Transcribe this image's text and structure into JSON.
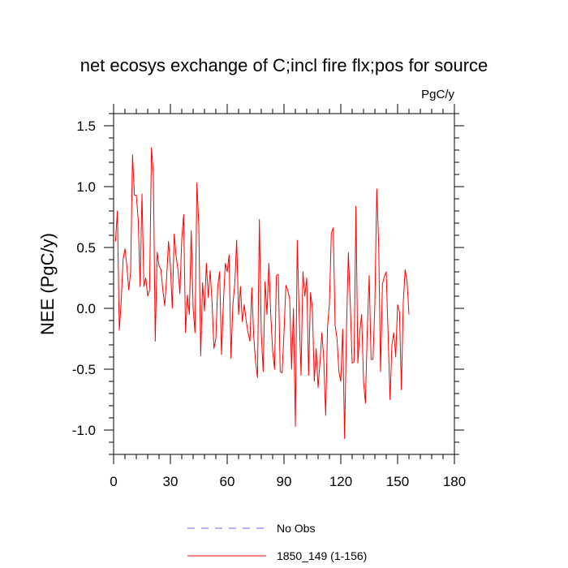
{
  "chart_data": {
    "type": "line",
    "title": "net ecosys exchange of C;incl fire flx;pos for source",
    "units_label": "PgC/y",
    "ylabel": "NEE  (PgC/y)",
    "xlabel": "",
    "xlim": [
      0,
      180
    ],
    "ylim": [
      -1.2,
      1.6
    ],
    "x_ticks": [
      0,
      30,
      60,
      90,
      120,
      150,
      180
    ],
    "x_tick_labels": [
      "0",
      "30",
      "60",
      "90",
      "120",
      "150",
      "180"
    ],
    "y_ticks": [
      -1.0,
      -0.5,
      0.0,
      0.5,
      1.0,
      1.5
    ],
    "y_tick_labels": [
      "-1.0",
      "-0.5",
      "0.0",
      "0.5",
      "1.0",
      "1.5"
    ],
    "grid": false,
    "legend_placement": "bottom",
    "series": [
      {
        "name": "No Obs",
        "color": "#6666ff",
        "dash": true,
        "values": []
      },
      {
        "name": "1850_149 (1-156)",
        "color": "#ff0000",
        "dash": false,
        "x_start": 1,
        "values": [
          0.55,
          0.8,
          -0.18,
          0.05,
          0.4,
          0.49,
          0.35,
          0.15,
          0.3,
          1.26,
          0.93,
          0.93,
          0.73,
          0.18,
          0.94,
          0.18,
          0.25,
          0.1,
          0.15,
          1.32,
          1.1,
          -0.27,
          0.46,
          0.35,
          0.32,
          0.15,
          0.02,
          0.25,
          0.55,
          0.35,
          0.0,
          0.61,
          0.43,
          0.32,
          0.12,
          0.57,
          0.77,
          -0.2,
          0.11,
          -0.05,
          0.64,
          0.0,
          -0.2,
          1.03,
          0.68,
          -0.39,
          0.21,
          -0.02,
          0.37,
          0.09,
          0.31,
          0.05,
          -0.33,
          -0.25,
          0.18,
          0.3,
          -0.38,
          0.05,
          0.37,
          0.3,
          0.44,
          -0.41,
          0.03,
          0.2,
          0.56,
          -0.05,
          0.18,
          -0.11,
          0.03,
          -0.1,
          -0.2,
          -0.27,
          0.17,
          -0.23,
          -0.44,
          -0.57,
          0.73,
          -0.2,
          -0.52,
          0.22,
          -0.05,
          0.37,
          -0.05,
          -0.35,
          -0.5,
          0.27,
          0.28,
          -0.52,
          -0.53,
          -0.2,
          0.19,
          0.15,
          0.08,
          -0.5,
          0.0,
          -0.97,
          0.56,
          -0.05,
          -0.55,
          0.3,
          0.1,
          0.25,
          -0.55,
          0.13,
          0.0,
          -0.6,
          -0.33,
          -0.65,
          -0.45,
          -0.2,
          -0.42,
          -0.88,
          -0.15,
          0.04,
          0.62,
          0.66,
          -0.14,
          -0.25,
          -0.52,
          -0.6,
          -0.17,
          -1.07,
          -0.18,
          0.46,
          0.04,
          -0.45,
          -0.44,
          0.84,
          -0.45,
          -0.2,
          -0.05,
          -0.6,
          -0.78,
          -0.17,
          0.27,
          -0.42,
          -0.42,
          0.04,
          0.98,
          0.53,
          -0.52,
          0.2,
          0.26,
          0.3,
          -0.22,
          -0.75,
          -0.3,
          -0.2,
          -0.4,
          0.03,
          -0.03,
          -0.67,
          0.05,
          0.32,
          0.22,
          -0.05
        ]
      }
    ]
  }
}
